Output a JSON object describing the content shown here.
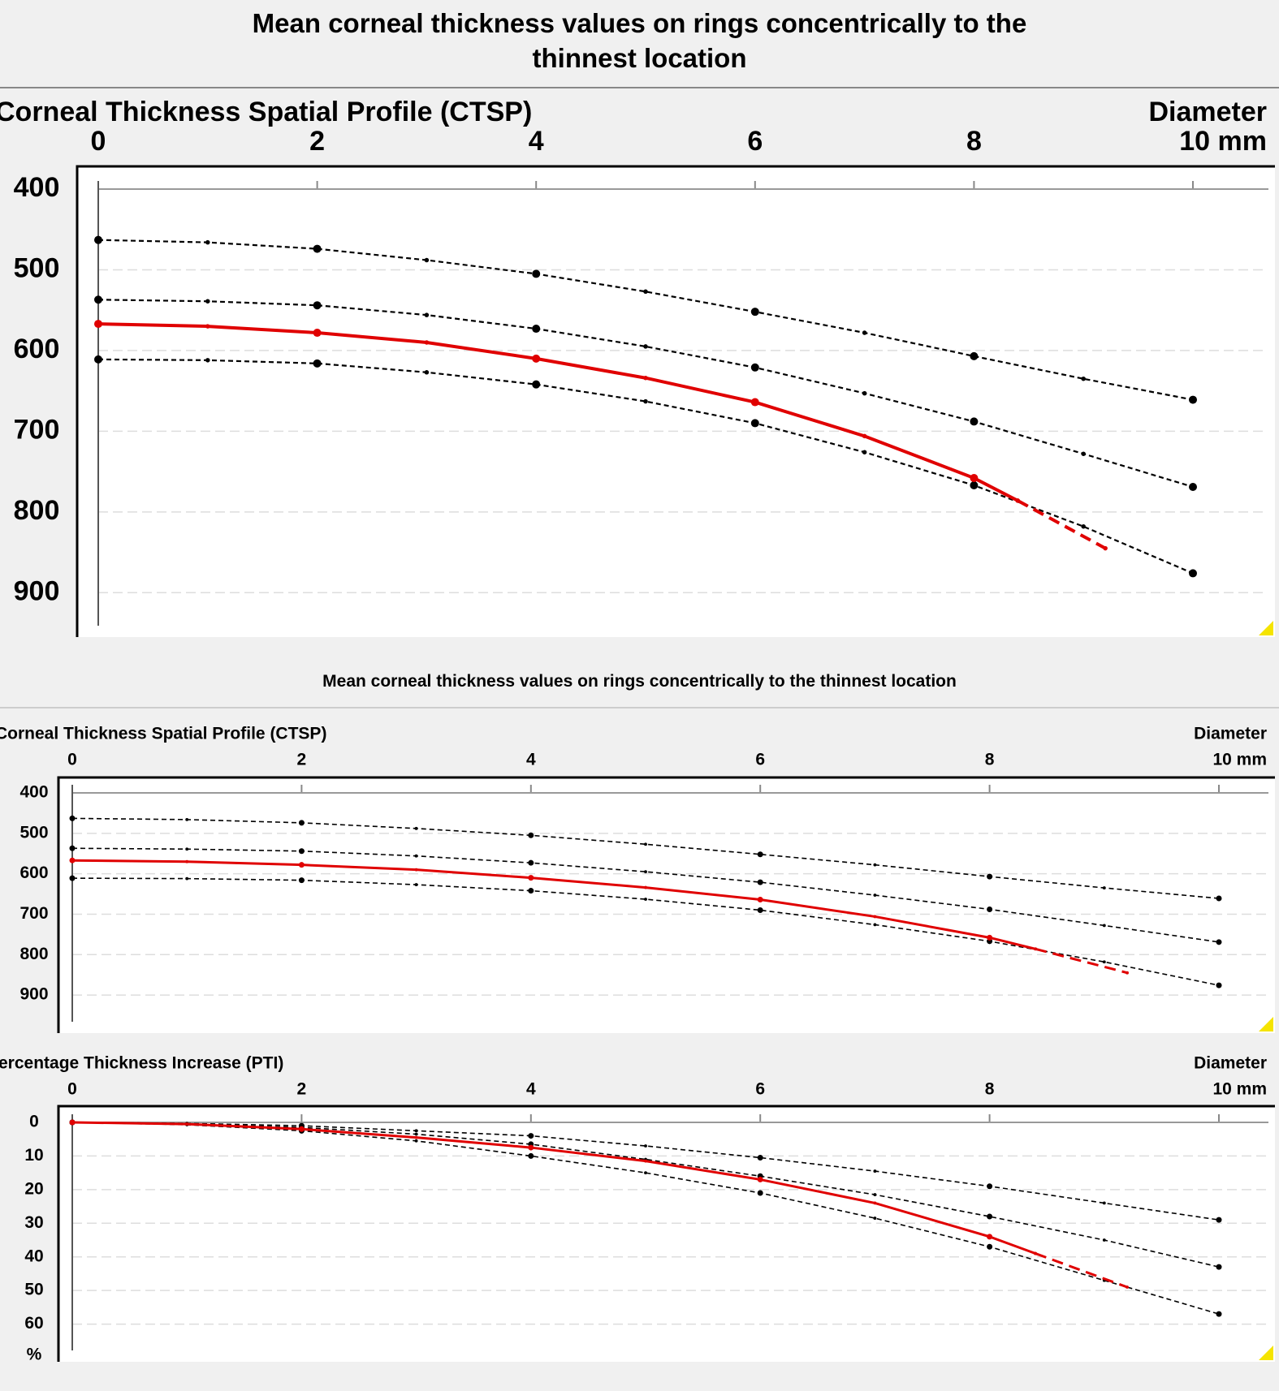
{
  "chart_data": [
    {
      "type": "line",
      "title": "Mean corneal thickness values on rings concentrically to the thinnest location",
      "subtitle": "Corneal Thickness Spatial Profile (CTSP)",
      "x_label": "Diameter",
      "xlim": [
        0,
        10
      ],
      "xticks": [
        0,
        2,
        4,
        6,
        8,
        {
          "value": 10,
          "label": "10 mm"
        }
      ],
      "ylim": [
        400,
        950
      ],
      "yticks": [
        400,
        500,
        600,
        700,
        800,
        900
      ],
      "y_inverted": true,
      "grid": true,
      "series": [
        {
          "color": "#000000",
          "dashed": true,
          "x": [
            0,
            1,
            2,
            3,
            4,
            5,
            6,
            7,
            8,
            9,
            10
          ],
          "values": [
            463,
            466,
            474,
            488,
            505,
            527,
            552,
            578,
            607,
            635,
            661
          ]
        },
        {
          "color": "#000000",
          "dashed": true,
          "x": [
            0,
            1,
            2,
            3,
            4,
            5,
            6,
            7,
            8,
            9,
            10
          ],
          "values": [
            537,
            539,
            544,
            556,
            573,
            595,
            621,
            653,
            688,
            728,
            769
          ]
        },
        {
          "color": "#000000",
          "dashed": true,
          "x": [
            0,
            1,
            2,
            3,
            4,
            5,
            6,
            7,
            8,
            9,
            10
          ],
          "values": [
            611,
            612,
            616,
            627,
            642,
            663,
            690,
            726,
            767,
            818,
            876
          ]
        },
        {
          "color": "#e00000",
          "dashed": false,
          "x": [
            0,
            1,
            2,
            3,
            4,
            5,
            6,
            7,
            8,
            8.4
          ],
          "values": [
            567,
            570,
            578,
            590,
            610,
            634,
            664,
            706,
            758,
            786
          ]
        },
        {
          "color": "#e00000",
          "dashed": true,
          "x": [
            8.4,
            9.2
          ],
          "values": [
            786,
            845
          ]
        }
      ]
    },
    {
      "type": "line",
      "title": "Mean corneal thickness values on rings concentrically to the thinnest location",
      "subtitle": "Corneal Thickness Spatial Profile (CTSP)",
      "x_label": "Diameter",
      "xlim": [
        0,
        10
      ],
      "xticks": [
        0,
        2,
        4,
        6,
        8,
        {
          "value": 10,
          "label": "10 mm"
        }
      ],
      "ylim": [
        400,
        950
      ],
      "yticks": [
        400,
        500,
        600,
        700,
        800,
        900
      ],
      "y_inverted": true,
      "grid": true,
      "series": [
        {
          "color": "#000000",
          "dashed": true,
          "x": [
            0,
            1,
            2,
            3,
            4,
            5,
            6,
            7,
            8,
            9,
            10
          ],
          "values": [
            463,
            466,
            474,
            488,
            505,
            527,
            552,
            578,
            607,
            635,
            661
          ]
        },
        {
          "color": "#000000",
          "dashed": true,
          "x": [
            0,
            1,
            2,
            3,
            4,
            5,
            6,
            7,
            8,
            9,
            10
          ],
          "values": [
            537,
            539,
            544,
            556,
            573,
            595,
            621,
            653,
            688,
            728,
            769
          ]
        },
        {
          "color": "#000000",
          "dashed": true,
          "x": [
            0,
            1,
            2,
            3,
            4,
            5,
            6,
            7,
            8,
            9,
            10
          ],
          "values": [
            611,
            612,
            616,
            627,
            642,
            663,
            690,
            726,
            767,
            818,
            876
          ]
        },
        {
          "color": "#e00000",
          "dashed": false,
          "x": [
            0,
            1,
            2,
            3,
            4,
            5,
            6,
            7,
            8,
            8.4
          ],
          "values": [
            567,
            570,
            578,
            590,
            610,
            634,
            664,
            706,
            758,
            786
          ]
        },
        {
          "color": "#e00000",
          "dashed": true,
          "x": [
            8.4,
            9.2
          ],
          "values": [
            786,
            845
          ]
        }
      ]
    },
    {
      "type": "line",
      "subtitle": "Percentage Thickness Increase (PTI)",
      "x_label": "Diameter",
      "y_label": "%",
      "xlim": [
        0,
        10
      ],
      "xticks": [
        0,
        2,
        4,
        6,
        8,
        {
          "value": 10,
          "label": "10 mm"
        }
      ],
      "ylim": [
        0,
        70
      ],
      "yticks": [
        0,
        10,
        20,
        30,
        40,
        50,
        60
      ],
      "y_inverted": true,
      "grid": true,
      "series": [
        {
          "color": "#000000",
          "dashed": true,
          "x": [
            0,
            1,
            2,
            3,
            4,
            5,
            6,
            7,
            8,
            9,
            10
          ],
          "values": [
            0,
            0.3,
            1,
            2.5,
            4,
            7,
            10.5,
            14.5,
            19,
            24,
            29
          ]
        },
        {
          "color": "#000000",
          "dashed": true,
          "x": [
            0,
            1,
            2,
            3,
            4,
            5,
            6,
            7,
            8,
            9,
            10
          ],
          "values": [
            0,
            0.5,
            1.5,
            3.5,
            6.5,
            11,
            16,
            21.5,
            28,
            35,
            43
          ]
        },
        {
          "color": "#000000",
          "dashed": true,
          "x": [
            0,
            1,
            2,
            3,
            4,
            5,
            6,
            7,
            8,
            9,
            10
          ],
          "values": [
            0,
            0.7,
            2.5,
            5.5,
            10,
            15,
            21,
            28.5,
            37,
            47,
            57
          ]
        },
        {
          "color": "#e00000",
          "dashed": false,
          "x": [
            0,
            1,
            2,
            3,
            4,
            5,
            6,
            7,
            8,
            8.4
          ],
          "values": [
            0,
            0.5,
            2,
            4.5,
            7.5,
            11.5,
            17,
            24,
            34,
            39
          ]
        },
        {
          "color": "#e00000",
          "dashed": true,
          "x": [
            8.4,
            9.2
          ],
          "values": [
            39,
            49
          ]
        }
      ]
    }
  ]
}
